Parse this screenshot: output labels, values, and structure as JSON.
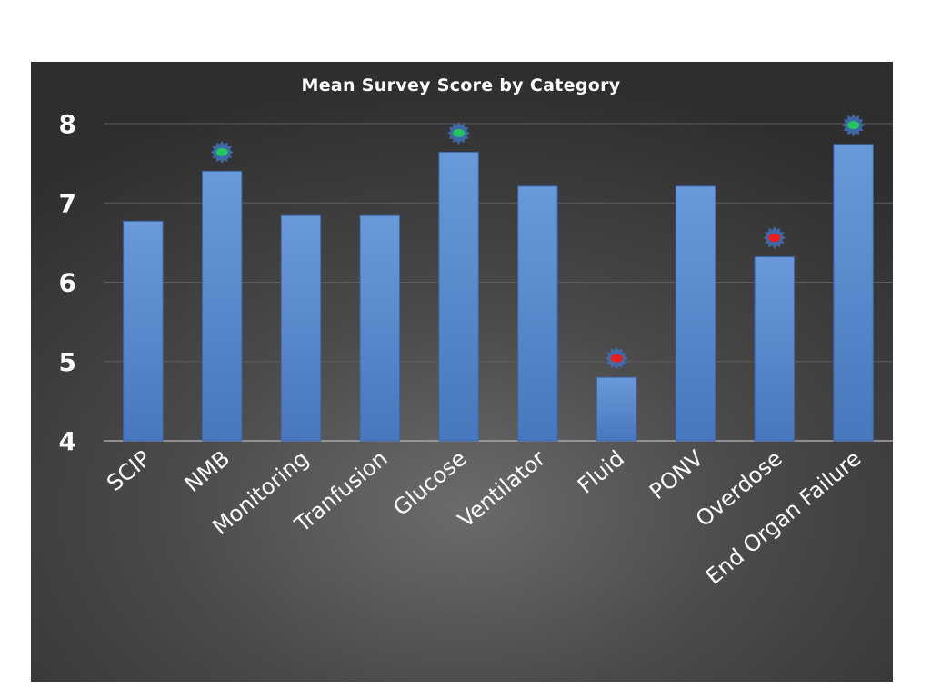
{
  "chart_data": {
    "type": "bar",
    "title": "Mean Survey Score by Category",
    "xlabel": "",
    "ylabel": "",
    "ylim": [
      4,
      8
    ],
    "yticks": [
      4,
      5,
      6,
      7,
      8
    ],
    "grid": true,
    "legend": "none",
    "categories": [
      "SCIP",
      "NMB",
      "Monitoring",
      "Tranfusion",
      "Glucose",
      "Ventilator",
      "Fluid",
      "PONV",
      "Overdose",
      "End Organ Failure"
    ],
    "values": [
      6.77,
      7.4,
      6.84,
      6.84,
      7.64,
      7.21,
      4.8,
      7.21,
      6.32,
      7.74
    ],
    "markers": [
      null,
      "green",
      null,
      null,
      "green",
      null,
      "red",
      null,
      "red",
      "green"
    ],
    "colors": {
      "bar": "#5b8bd0",
      "marker_green": "#22c55e",
      "marker_red": "#ef1c1c",
      "burst": "#3f6fb0"
    }
  }
}
